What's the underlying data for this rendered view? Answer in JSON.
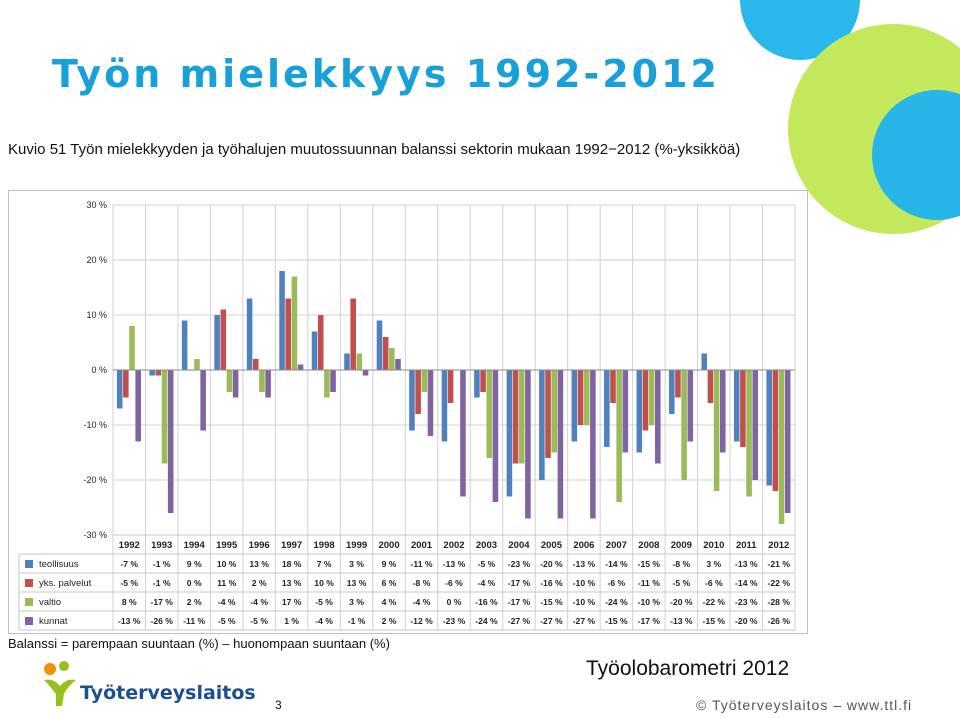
{
  "slide": {
    "title": "Työn mielekkyys 1992-2012",
    "caption": "Kuvio 51 Työn mielekkyyden ja työhalujen muutossuunnan balanssi sektorin mukaan 1992−2012 (%-yksikköä)",
    "balance_note": "Balanssi = parempaan suuntaan (%) – huonompaan suuntaan (%)",
    "source": "Työolobarometri 2012",
    "page_number": "3",
    "footer_credit": "© Työterveyslaitos – www.ttl.fi",
    "logo_text": "Työterveyslaitos"
  },
  "colors": {
    "title": "#1aa0d8",
    "logo_text": "#1b4f8f",
    "logo_orange": "#f39200",
    "logo_green": "#95c11f"
  },
  "chart_data": {
    "type": "bar",
    "categories": [
      "1992",
      "1993",
      "1994",
      "1995",
      "1996",
      "1997",
      "1998",
      "1999",
      "2000",
      "2001",
      "2002",
      "2003",
      "2004",
      "2005",
      "2006",
      "2007",
      "2008",
      "2009",
      "2010",
      "2011",
      "2012"
    ],
    "yticks": [
      "30 %",
      "20 %",
      "10 %",
      "0 %",
      "-10 %",
      "-20 %",
      "-30 %"
    ],
    "ylim": [
      -30,
      30
    ],
    "grid": true,
    "legend": "data-table-left",
    "series": [
      {
        "name": "teollisuus",
        "color": "#4f81bd",
        "values": [
          -7,
          -1,
          9,
          10,
          13,
          18,
          7,
          3,
          9,
          -11,
          -13,
          -5,
          -23,
          -20,
          -13,
          -14,
          -15,
          -8,
          3,
          -13,
          -21
        ],
        "labels": [
          "-7 %",
          "-1 %",
          "9 %",
          "10 %",
          "13 %",
          "18 %",
          "7 %",
          "3 %",
          "9 %",
          "-11 %",
          "-13 %",
          "-5 %",
          "-23 %",
          "-20 %",
          "-13 %",
          "-14 %",
          "-15 %",
          "-8 %",
          "3 %",
          "-13 %",
          "-21 %"
        ]
      },
      {
        "name": "yks. palvelut",
        "color": "#c0504d",
        "values": [
          -5,
          -1,
          0,
          11,
          2,
          13,
          10,
          13,
          6,
          -8,
          -6,
          -4,
          -17,
          -16,
          -10,
          -6,
          -11,
          -5,
          -6,
          -14,
          -22
        ],
        "labels": [
          "-5 %",
          "-1 %",
          "0 %",
          "11 %",
          "2 %",
          "13 %",
          "10 %",
          "13 %",
          "6 %",
          "-8 %",
          "-6 %",
          "-4 %",
          "-17 %",
          "-16 %",
          "-10 %",
          "-6 %",
          "-11 %",
          "-5 %",
          "-6 %",
          "-14 %",
          "-22 %"
        ]
      },
      {
        "name": "valtio",
        "color": "#9bbb59",
        "values": [
          8,
          -17,
          2,
          -4,
          -4,
          17,
          -5,
          3,
          4,
          -4,
          0,
          -16,
          -17,
          -15,
          -10,
          -24,
          -10,
          -20,
          -22,
          -23,
          -28
        ],
        "labels": [
          "8 %",
          "-17 %",
          "2 %",
          "-4 %",
          "-4 %",
          "17 %",
          "-5 %",
          "3 %",
          "4 %",
          "-4 %",
          "0 %",
          "-16 %",
          "-17 %",
          "-15 %",
          "-10 %",
          "-24 %",
          "-10 %",
          "-20 %",
          "-22 %",
          "-23 %",
          "-28 %"
        ]
      },
      {
        "name": "kunnat",
        "color": "#8064a2",
        "values": [
          -13,
          -26,
          -11,
          -5,
          -5,
          1,
          -4,
          -1,
          2,
          -12,
          -23,
          -24,
          -27,
          -27,
          -27,
          -15,
          -17,
          -13,
          -15,
          -20,
          -26
        ],
        "labels": [
          "-13 %",
          "-26 %",
          "-11 %",
          "-5 %",
          "-5 %",
          "1 %",
          "-4 %",
          "-1 %",
          "2 %",
          "-12 %",
          "-23 %",
          "-24 %",
          "-27 %",
          "-27 %",
          "-27 %",
          "-15 %",
          "-17 %",
          "-13 %",
          "-15 %",
          "-20 %",
          "-26 %"
        ]
      }
    ]
  }
}
